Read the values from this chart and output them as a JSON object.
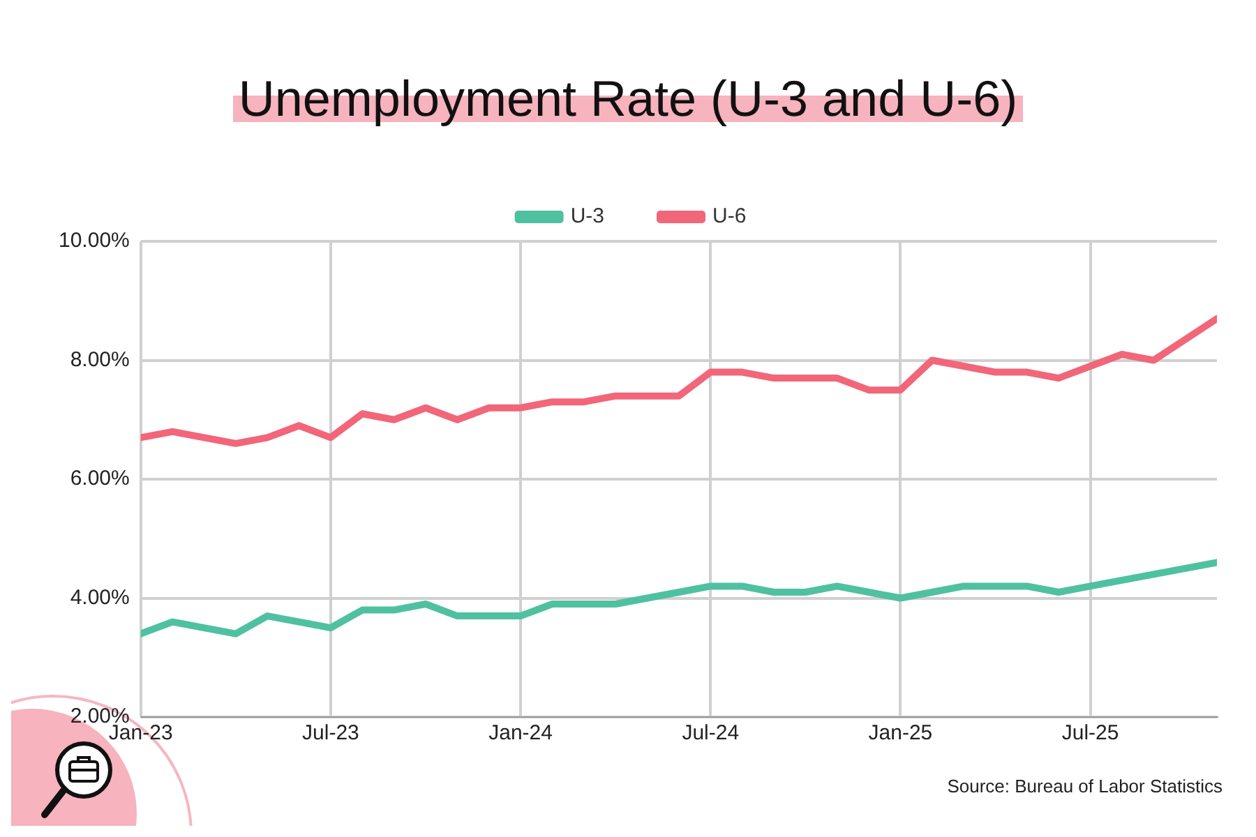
{
  "chart_data": {
    "type": "line",
    "title": "Unemployment Rate (U-3 and U-6)",
    "x": [
      "2023-01",
      "2023-02",
      "2023-03",
      "2023-04",
      "2023-05",
      "2023-06",
      "2023-07",
      "2023-08",
      "2023-09",
      "2023-10",
      "2023-11",
      "2023-12",
      "2024-01",
      "2024-02",
      "2024-03",
      "2024-04",
      "2024-05",
      "2024-06",
      "2024-07",
      "2024-08",
      "2024-09",
      "2024-10",
      "2024-11",
      "2024-12",
      "2025-01",
      "2025-02",
      "2025-03",
      "2025-04",
      "2025-05",
      "2025-06",
      "2025-07",
      "2025-08",
      "2025-09",
      "2025-11"
    ],
    "series": [
      {
        "name": "U-3",
        "color": "#4fc1a0",
        "values": [
          3.4,
          3.6,
          3.5,
          3.4,
          3.7,
          3.6,
          3.5,
          3.8,
          3.8,
          3.9,
          3.7,
          3.7,
          3.7,
          3.9,
          3.9,
          3.9,
          4.0,
          4.1,
          4.2,
          4.2,
          4.1,
          4.1,
          4.2,
          4.1,
          4.0,
          4.1,
          4.2,
          4.2,
          4.2,
          4.1,
          4.2,
          4.3,
          4.4,
          4.6
        ]
      },
      {
        "name": "U-6",
        "color": "#f2667a",
        "values": [
          6.7,
          6.8,
          6.7,
          6.6,
          6.7,
          6.9,
          6.7,
          7.1,
          7.0,
          7.2,
          7.0,
          7.2,
          7.2,
          7.3,
          7.3,
          7.4,
          7.4,
          7.4,
          7.8,
          7.8,
          7.7,
          7.7,
          7.7,
          7.5,
          7.5,
          8.0,
          7.9,
          7.8,
          7.8,
          7.7,
          7.9,
          8.1,
          8.0,
          8.7
        ]
      }
    ],
    "xlim": [
      "2023-01",
      "2025-11"
    ],
    "xticks": [
      {
        "value": "2023-01",
        "label": "Jan-23"
      },
      {
        "value": "2023-07",
        "label": "Jul-23"
      },
      {
        "value": "2024-01",
        "label": "Jan-24"
      },
      {
        "value": "2024-07",
        "label": "Jul-24"
      },
      {
        "value": "2025-01",
        "label": "Jan-25"
      },
      {
        "value": "2025-07",
        "label": "Jul-25"
      }
    ],
    "ylim": [
      2,
      10
    ],
    "yticks": [
      {
        "value": 2,
        "label": "2.00%"
      },
      {
        "value": 4,
        "label": "4.00%"
      },
      {
        "value": 6,
        "label": "6.00%"
      },
      {
        "value": 8,
        "label": "8.00%"
      },
      {
        "value": 10,
        "label": "10.00%"
      }
    ],
    "grid": true,
    "legend": "top",
    "marker": "none",
    "line_style": "solid",
    "annotations": [
      "Source: Bureau of Labor Statistics"
    ]
  }
}
